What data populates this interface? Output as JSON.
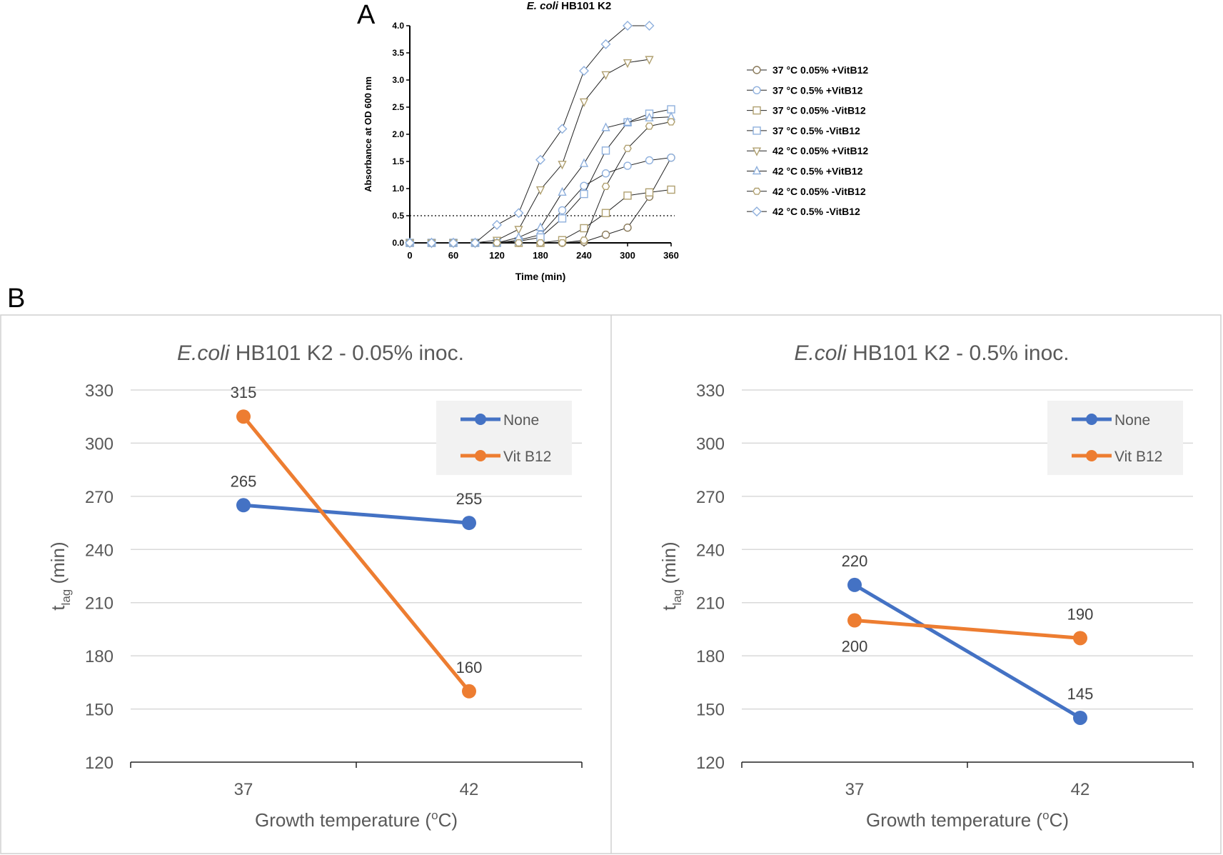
{
  "panel_labels": {
    "a": "A",
    "b": "B"
  },
  "chart_data": [
    {
      "id": "growth-curves",
      "type": "line",
      "title_italic": "E. coli",
      "title_rest": " HB101 K2",
      "xlabel": "Time (min)",
      "ylabel": "Absorbance at OD 600 nm",
      "xlim": [
        0,
        360
      ],
      "ylim": [
        0,
        4.0
      ],
      "xticks": [
        0,
        60,
        120,
        180,
        240,
        300,
        360
      ],
      "yticks": [
        0.0,
        0.5,
        1.0,
        1.5,
        2.0,
        2.5,
        3.0,
        3.5,
        4.0
      ],
      "threshold": 0.5,
      "threshold_style": "dotted",
      "legend_position": "right",
      "series": [
        {
          "name": "37 °C 0.05% +VitB12",
          "marker": "circle",
          "color": "#8a7a5a",
          "x": [
            0,
            30,
            60,
            90,
            120,
            150,
            180,
            210,
            240,
            270,
            300,
            330,
            360
          ],
          "y": [
            0,
            0,
            0,
            0,
            0,
            0,
            0,
            0,
            0.02,
            0.15,
            0.28,
            0.85,
            1.57
          ]
        },
        {
          "name": "37 °C 0.5% +VitB12",
          "marker": "circle",
          "color": "#8fb0dd",
          "x": [
            0,
            30,
            60,
            90,
            120,
            150,
            180,
            210,
            240,
            270,
            300,
            330,
            360
          ],
          "y": [
            0,
            0,
            0,
            0,
            0,
            0.05,
            0.15,
            0.6,
            1.05,
            1.28,
            1.42,
            1.52,
            1.57
          ]
        },
        {
          "name": "37 °C 0.05% -VitB12",
          "marker": "square",
          "color": "#b0a070",
          "x": [
            0,
            30,
            60,
            90,
            120,
            150,
            180,
            210,
            240,
            270,
            300,
            330,
            360
          ],
          "y": [
            0,
            0,
            0,
            0,
            0,
            0,
            0,
            0.05,
            0.27,
            0.55,
            0.87,
            0.93,
            0.98
          ]
        },
        {
          "name": "37 °C 0.5% -VitB12",
          "marker": "square",
          "color": "#8fb0dd",
          "x": [
            0,
            30,
            60,
            90,
            120,
            150,
            180,
            210,
            240,
            270,
            300,
            330,
            360
          ],
          "y": [
            0,
            0,
            0,
            0,
            0,
            0.03,
            0.1,
            0.45,
            0.9,
            1.7,
            2.22,
            2.38,
            2.46
          ]
        },
        {
          "name": "42 °C 0.05% +VitB12",
          "marker": "triangle-down",
          "color": "#b0a070",
          "x": [
            0,
            30,
            60,
            90,
            120,
            150,
            180,
            210,
            240,
            270,
            300,
            330
          ],
          "y": [
            0,
            0,
            0,
            0,
            0.05,
            0.25,
            0.98,
            1.45,
            2.6,
            3.1,
            3.32,
            3.38
          ]
        },
        {
          "name": "42 °C 0.5% +VitB12",
          "marker": "triangle-up",
          "color": "#8fb0dd",
          "x": [
            0,
            30,
            60,
            90,
            120,
            150,
            180,
            210,
            240,
            270,
            300,
            330,
            360
          ],
          "y": [
            0,
            0,
            0,
            0,
            0,
            0.1,
            0.28,
            0.93,
            1.46,
            2.12,
            2.22,
            2.3,
            2.32
          ]
        },
        {
          "name": "42 °C 0.05% -VitB12",
          "marker": "hexagon",
          "color": "#b0a070",
          "x": [
            0,
            30,
            60,
            90,
            120,
            150,
            180,
            210,
            240,
            270,
            300,
            330,
            360
          ],
          "y": [
            0,
            0,
            0,
            0,
            0,
            0,
            0,
            0,
            0.05,
            1.04,
            1.74,
            2.15,
            2.23
          ]
        },
        {
          "name": "42 °C 0.5% -VitB12",
          "marker": "diamond",
          "color": "#8fb0dd",
          "x": [
            0,
            30,
            60,
            90,
            120,
            150,
            180,
            210,
            240,
            270,
            300,
            330
          ],
          "y": [
            0,
            0,
            0,
            0,
            0.33,
            0.55,
            1.53,
            2.1,
            3.17,
            3.66,
            4.0,
            4.0
          ]
        }
      ]
    },
    {
      "id": "lag-low-inoc",
      "type": "line",
      "title_italic": "E.coli",
      "title_rest": " HB101 K2 - 0.05% inoc.",
      "xlabel_main": "Growth temperature (",
      "xlabel_sup": "o",
      "xlabel_end": "C)",
      "ylabel_main": "t",
      "ylabel_sub": "lag",
      "ylabel_end": "  (min)",
      "categories": [
        "37",
        "42"
      ],
      "ylim": [
        120,
        330
      ],
      "yticks": [
        120,
        150,
        180,
        210,
        240,
        270,
        300,
        330
      ],
      "legend_position": "top-right",
      "series": [
        {
          "name": "None",
          "color": "#4472c4",
          "values": [
            265,
            255
          ]
        },
        {
          "name": "Vit B12",
          "color": "#ed7d31",
          "values": [
            315,
            160
          ]
        }
      ]
    },
    {
      "id": "lag-high-inoc",
      "type": "line",
      "title_italic": "E.coli",
      "title_rest": " HB101 K2 - 0.5% inoc.",
      "xlabel_main": "Growth temperature (",
      "xlabel_sup": "o",
      "xlabel_end": "C)",
      "ylabel_main": "t",
      "ylabel_sub": "lag",
      "ylabel_end": "  (min)",
      "categories": [
        "37",
        "42"
      ],
      "ylim": [
        120,
        330
      ],
      "yticks": [
        120,
        150,
        180,
        210,
        240,
        270,
        300,
        330
      ],
      "legend_position": "top-right",
      "series": [
        {
          "name": "None",
          "color": "#4472c4",
          "values": [
            220,
            145
          ]
        },
        {
          "name": "Vit B12",
          "color": "#ed7d31",
          "values": [
            200,
            190
          ]
        }
      ]
    }
  ]
}
